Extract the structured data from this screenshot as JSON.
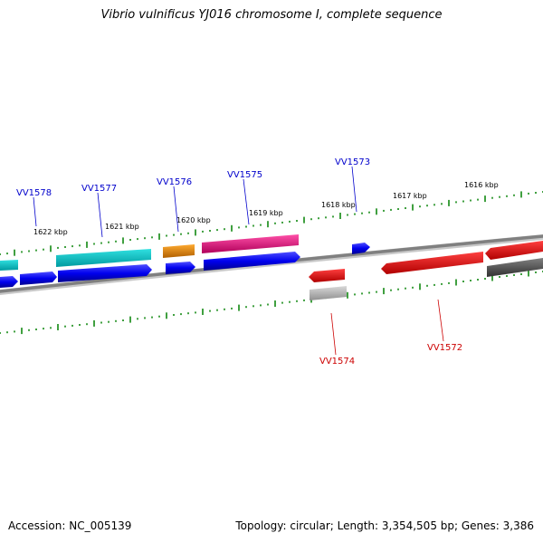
{
  "header": {
    "title": "Vibrio vulnificus YJ016 chromosome I, complete sequence"
  },
  "footer": {
    "accession": "Accession: NC_005139",
    "summary": "Topology: circular; Length: 3,354,505 bp; Genes: 3,386"
  },
  "scale": {
    "tick_labels": [
      "1622 kbp",
      "1621 kbp",
      "1620 kbp",
      "1619 kbp",
      "1618 kbp",
      "1617 kbp",
      "1616 kbp"
    ],
    "tick_color": "#008000"
  },
  "genes": {
    "label_color_plus": "#0000cc",
    "label_color_minus": "#cc0000",
    "labels_plus": [
      "VV1578",
      "VV1577",
      "VV1576",
      "VV1575",
      "VV1573"
    ],
    "labels_minus": [
      "VV1574",
      "VV1572"
    ]
  },
  "colors": {
    "backbone": "#808080",
    "blue": "#0000ee",
    "cyan": "#00c8c8",
    "orange": "#e08000",
    "magenta": "#e0107a",
    "red": "#ee0000",
    "dark_gray": "#505050",
    "light_gray": "#b0b0b0"
  }
}
